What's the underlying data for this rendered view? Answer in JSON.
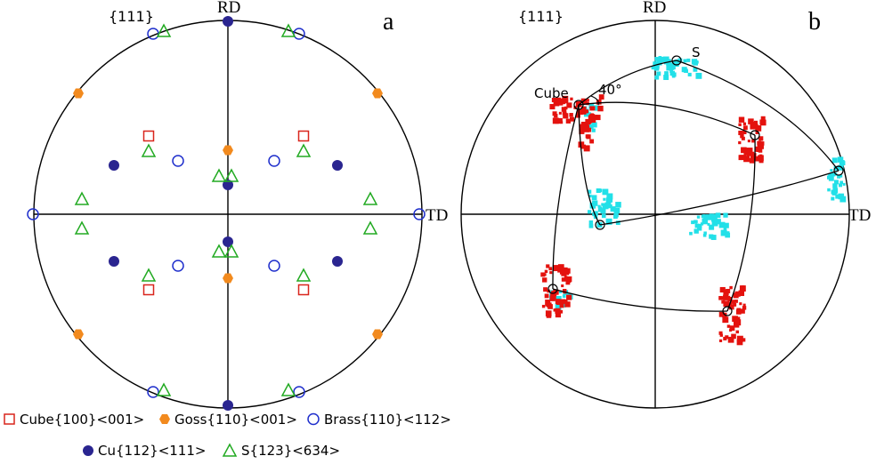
{
  "colors": {
    "cube": "#d9251c",
    "goss": "#f28a1e",
    "brass": "#1f2fcc",
    "cu": "#2a2590",
    "s": "#22aa22",
    "cyan": "#22e0e8",
    "red_cluster": "#e4120e",
    "line": "#000000"
  },
  "panel_a": {
    "pole_label": "{111}",
    "panel_letter": "a",
    "rd_label": "RD",
    "td_label": "TD",
    "markers": {
      "cube": [
        [
          -89,
          -88
        ],
        [
          85,
          -88
        ],
        [
          -89,
          85
        ],
        [
          85,
          85
        ]
      ],
      "goss": [
        [
          -168,
          -136
        ],
        [
          168,
          -136
        ],
        [
          0,
          -72
        ],
        [
          0,
          72
        ],
        [
          -168,
          135
        ],
        [
          168,
          135
        ]
      ],
      "brass": [
        [
          -84,
          -203
        ],
        [
          80,
          -203
        ],
        [
          -56,
          -60
        ],
        [
          52,
          -60
        ],
        [
          -219,
          0
        ],
        [
          215,
          0
        ],
        [
          -56,
          58
        ],
        [
          52,
          58
        ],
        [
          -84,
          200
        ],
        [
          80,
          200
        ]
      ],
      "cu": [
        [
          0,
          -217
        ],
        [
          -128,
          -55
        ],
        [
          123,
          -55
        ],
        [
          0,
          -33
        ],
        [
          0,
          31
        ],
        [
          -128,
          53
        ],
        [
          123,
          53
        ],
        [
          0,
          215
        ]
      ],
      "s": [
        [
          -72,
          -206
        ],
        [
          68,
          -206
        ],
        [
          -89,
          -71
        ],
        [
          85,
          -71
        ],
        [
          -10,
          -43
        ],
        [
          4,
          -43
        ],
        [
          -164,
          -17
        ],
        [
          160,
          -17
        ],
        [
          -164,
          16
        ],
        [
          160,
          16
        ],
        [
          -10,
          42
        ],
        [
          4,
          42
        ],
        [
          -89,
          69
        ],
        [
          85,
          69
        ],
        [
          -72,
          198
        ],
        [
          68,
          198
        ]
      ]
    }
  },
  "panel_b": {
    "pole_label": "{111}",
    "panel_letter": "b",
    "rd_label": "RD",
    "td_label": "TD",
    "cube_label": "Cube",
    "s_label": "S",
    "angle_label": "40°"
  },
  "legend": {
    "items": [
      {
        "key": "cube",
        "text": "Cube{100}<001>"
      },
      {
        "key": "goss",
        "text": "Goss{110}<001>"
      },
      {
        "key": "brass",
        "text": "Brass{110}<112>"
      },
      {
        "key": "cu",
        "text": "Cu{112}<111>"
      },
      {
        "key": "s",
        "text": "S{123}<634>"
      }
    ]
  }
}
